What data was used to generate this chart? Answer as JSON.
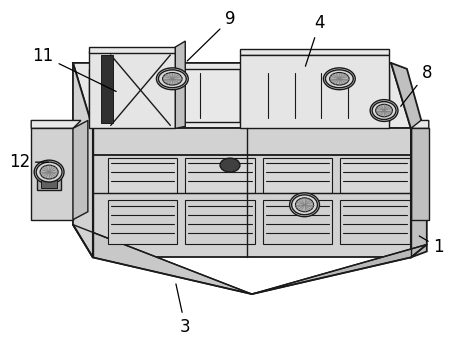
{
  "bg_color": "#ffffff",
  "lc": "#1a1a1a",
  "lw": 1.0,
  "c_top": "#e8e8e8",
  "c_front": "#d2d2d2",
  "c_right": "#c0c0c0",
  "c_inner": "#e4e4e4",
  "c_dark": "#909090",
  "c_slot": "#303030",
  "c_knob1": "#d8d8d8",
  "c_knob2": "#b0b0b0",
  "c_blob": "#404040",
  "figsize": [
    4.59,
    3.59
  ],
  "dpi": 100
}
